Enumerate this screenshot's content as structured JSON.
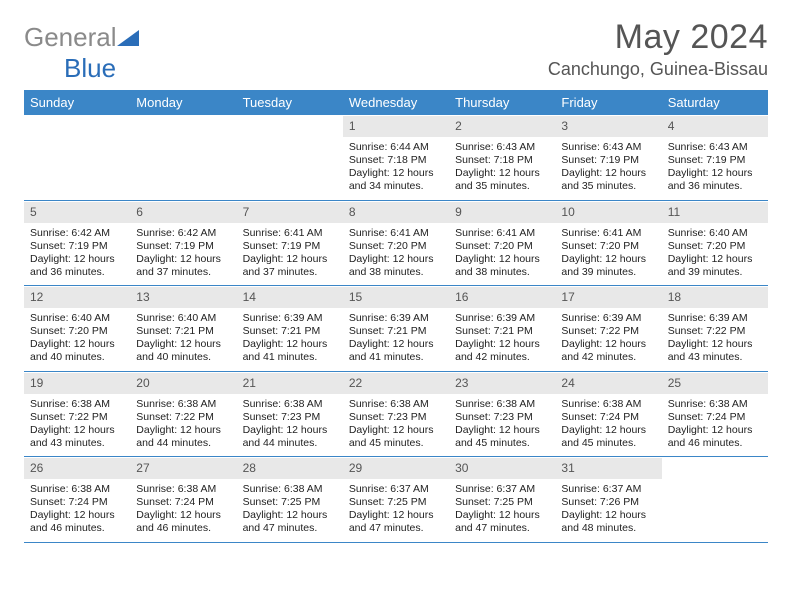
{
  "logo": {
    "part1": "General",
    "part2": "Blue"
  },
  "title": "May 2024",
  "location": "Canchungo, Guinea-Bissau",
  "colors": {
    "header_bg": "#3b86c7",
    "header_text": "#ffffff",
    "daynum_bg": "#e8e8e8",
    "daynum_text": "#555555",
    "body_text": "#222222",
    "title_text": "#555555",
    "week_border": "#3b86c7"
  },
  "typography": {
    "title_fontsize": 34,
    "location_fontsize": 18,
    "dayhead_fontsize": 13,
    "daynum_fontsize": 12,
    "detail_fontsize": 10.5
  },
  "day_names": [
    "Sunday",
    "Monday",
    "Tuesday",
    "Wednesday",
    "Thursday",
    "Friday",
    "Saturday"
  ],
  "weeks": [
    [
      {
        "n": "",
        "sunrise": "",
        "sunset": "",
        "daylight": ""
      },
      {
        "n": "",
        "sunrise": "",
        "sunset": "",
        "daylight": ""
      },
      {
        "n": "",
        "sunrise": "",
        "sunset": "",
        "daylight": ""
      },
      {
        "n": "1",
        "sunrise": "Sunrise: 6:44 AM",
        "sunset": "Sunset: 7:18 PM",
        "daylight": "Daylight: 12 hours and 34 minutes."
      },
      {
        "n": "2",
        "sunrise": "Sunrise: 6:43 AM",
        "sunset": "Sunset: 7:18 PM",
        "daylight": "Daylight: 12 hours and 35 minutes."
      },
      {
        "n": "3",
        "sunrise": "Sunrise: 6:43 AM",
        "sunset": "Sunset: 7:19 PM",
        "daylight": "Daylight: 12 hours and 35 minutes."
      },
      {
        "n": "4",
        "sunrise": "Sunrise: 6:43 AM",
        "sunset": "Sunset: 7:19 PM",
        "daylight": "Daylight: 12 hours and 36 minutes."
      }
    ],
    [
      {
        "n": "5",
        "sunrise": "Sunrise: 6:42 AM",
        "sunset": "Sunset: 7:19 PM",
        "daylight": "Daylight: 12 hours and 36 minutes."
      },
      {
        "n": "6",
        "sunrise": "Sunrise: 6:42 AM",
        "sunset": "Sunset: 7:19 PM",
        "daylight": "Daylight: 12 hours and 37 minutes."
      },
      {
        "n": "7",
        "sunrise": "Sunrise: 6:41 AM",
        "sunset": "Sunset: 7:19 PM",
        "daylight": "Daylight: 12 hours and 37 minutes."
      },
      {
        "n": "8",
        "sunrise": "Sunrise: 6:41 AM",
        "sunset": "Sunset: 7:20 PM",
        "daylight": "Daylight: 12 hours and 38 minutes."
      },
      {
        "n": "9",
        "sunrise": "Sunrise: 6:41 AM",
        "sunset": "Sunset: 7:20 PM",
        "daylight": "Daylight: 12 hours and 38 minutes."
      },
      {
        "n": "10",
        "sunrise": "Sunrise: 6:41 AM",
        "sunset": "Sunset: 7:20 PM",
        "daylight": "Daylight: 12 hours and 39 minutes."
      },
      {
        "n": "11",
        "sunrise": "Sunrise: 6:40 AM",
        "sunset": "Sunset: 7:20 PM",
        "daylight": "Daylight: 12 hours and 39 minutes."
      }
    ],
    [
      {
        "n": "12",
        "sunrise": "Sunrise: 6:40 AM",
        "sunset": "Sunset: 7:20 PM",
        "daylight": "Daylight: 12 hours and 40 minutes."
      },
      {
        "n": "13",
        "sunrise": "Sunrise: 6:40 AM",
        "sunset": "Sunset: 7:21 PM",
        "daylight": "Daylight: 12 hours and 40 minutes."
      },
      {
        "n": "14",
        "sunrise": "Sunrise: 6:39 AM",
        "sunset": "Sunset: 7:21 PM",
        "daylight": "Daylight: 12 hours and 41 minutes."
      },
      {
        "n": "15",
        "sunrise": "Sunrise: 6:39 AM",
        "sunset": "Sunset: 7:21 PM",
        "daylight": "Daylight: 12 hours and 41 minutes."
      },
      {
        "n": "16",
        "sunrise": "Sunrise: 6:39 AM",
        "sunset": "Sunset: 7:21 PM",
        "daylight": "Daylight: 12 hours and 42 minutes."
      },
      {
        "n": "17",
        "sunrise": "Sunrise: 6:39 AM",
        "sunset": "Sunset: 7:22 PM",
        "daylight": "Daylight: 12 hours and 42 minutes."
      },
      {
        "n": "18",
        "sunrise": "Sunrise: 6:39 AM",
        "sunset": "Sunset: 7:22 PM",
        "daylight": "Daylight: 12 hours and 43 minutes."
      }
    ],
    [
      {
        "n": "19",
        "sunrise": "Sunrise: 6:38 AM",
        "sunset": "Sunset: 7:22 PM",
        "daylight": "Daylight: 12 hours and 43 minutes."
      },
      {
        "n": "20",
        "sunrise": "Sunrise: 6:38 AM",
        "sunset": "Sunset: 7:22 PM",
        "daylight": "Daylight: 12 hours and 44 minutes."
      },
      {
        "n": "21",
        "sunrise": "Sunrise: 6:38 AM",
        "sunset": "Sunset: 7:23 PM",
        "daylight": "Daylight: 12 hours and 44 minutes."
      },
      {
        "n": "22",
        "sunrise": "Sunrise: 6:38 AM",
        "sunset": "Sunset: 7:23 PM",
        "daylight": "Daylight: 12 hours and 45 minutes."
      },
      {
        "n": "23",
        "sunrise": "Sunrise: 6:38 AM",
        "sunset": "Sunset: 7:23 PM",
        "daylight": "Daylight: 12 hours and 45 minutes."
      },
      {
        "n": "24",
        "sunrise": "Sunrise: 6:38 AM",
        "sunset": "Sunset: 7:24 PM",
        "daylight": "Daylight: 12 hours and 45 minutes."
      },
      {
        "n": "25",
        "sunrise": "Sunrise: 6:38 AM",
        "sunset": "Sunset: 7:24 PM",
        "daylight": "Daylight: 12 hours and 46 minutes."
      }
    ],
    [
      {
        "n": "26",
        "sunrise": "Sunrise: 6:38 AM",
        "sunset": "Sunset: 7:24 PM",
        "daylight": "Daylight: 12 hours and 46 minutes."
      },
      {
        "n": "27",
        "sunrise": "Sunrise: 6:38 AM",
        "sunset": "Sunset: 7:24 PM",
        "daylight": "Daylight: 12 hours and 46 minutes."
      },
      {
        "n": "28",
        "sunrise": "Sunrise: 6:38 AM",
        "sunset": "Sunset: 7:25 PM",
        "daylight": "Daylight: 12 hours and 47 minutes."
      },
      {
        "n": "29",
        "sunrise": "Sunrise: 6:37 AM",
        "sunset": "Sunset: 7:25 PM",
        "daylight": "Daylight: 12 hours and 47 minutes."
      },
      {
        "n": "30",
        "sunrise": "Sunrise: 6:37 AM",
        "sunset": "Sunset: 7:25 PM",
        "daylight": "Daylight: 12 hours and 47 minutes."
      },
      {
        "n": "31",
        "sunrise": "Sunrise: 6:37 AM",
        "sunset": "Sunset: 7:26 PM",
        "daylight": "Daylight: 12 hours and 48 minutes."
      },
      {
        "n": "",
        "sunrise": "",
        "sunset": "",
        "daylight": ""
      }
    ]
  ]
}
